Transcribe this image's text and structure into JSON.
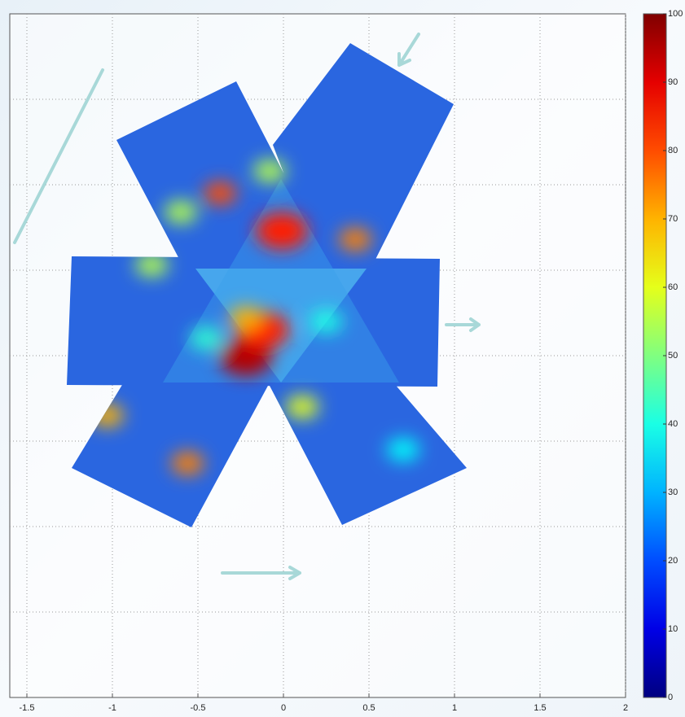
{
  "chart_data": {
    "type": "heatmap",
    "xlim": [
      -1.6,
      2
    ],
    "xticks": [
      {
        "value": -1.5,
        "label": "-1.5"
      },
      -1,
      {
        "value": -0.5,
        "label": "-0.5"
      },
      0,
      {
        "value": 0.5,
        "label": "0.5"
      },
      1,
      {
        "value": 1.5,
        "label": "1.5"
      },
      2
    ],
    "ylim": [
      -2,
      2
    ],
    "yticks": [
      -1.5,
      -1,
      -0.5,
      0,
      0.5,
      1,
      1.5
    ],
    "grid": true,
    "clim": [
      0,
      100
    ],
    "cticks": [
      0,
      10,
      20,
      30,
      40,
      50,
      60,
      70,
      80,
      90,
      100
    ],
    "colormap": "jet",
    "hotspots": [
      {
        "x": -0.22,
        "y": -0.01,
        "value": 95
      },
      {
        "x": -0.12,
        "y": 0.15,
        "value": 85
      },
      {
        "x": -0.01,
        "y": 0.73,
        "value": 85
      },
      {
        "x": -0.37,
        "y": 0.95,
        "value": 80
      },
      {
        "x": -0.56,
        "y": -0.63,
        "value": 75
      },
      {
        "x": 0.42,
        "y": 0.68,
        "value": 75
      },
      {
        "x": -0.22,
        "y": 0.22,
        "value": 70
      },
      {
        "x": 0.11,
        "y": -0.3,
        "value": 60
      },
      {
        "x": -1.03,
        "y": -0.35,
        "value": 70
      },
      {
        "x": -0.77,
        "y": 0.53,
        "value": 55
      },
      {
        "x": -0.6,
        "y": 0.84,
        "value": 55
      },
      {
        "x": -0.08,
        "y": 1.08,
        "value": 55
      },
      {
        "x": 0.25,
        "y": 0.2,
        "value": 40
      },
      {
        "x": -0.45,
        "y": 0.1,
        "value": 42
      },
      {
        "x": 0.7,
        "y": -0.55,
        "value": 38
      }
    ]
  }
}
